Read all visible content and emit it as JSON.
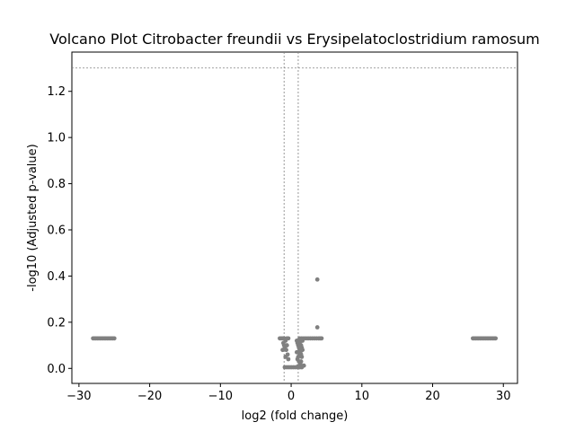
{
  "chart_data": {
    "type": "scatter",
    "title": "Volcano Plot Citrobacter freundii vs Erysipelatoclostridium ramosum",
    "xlabel": "log2 (fold change)",
    "ylabel": "-log10 (Adjusted p-value)",
    "xlim": [
      -31,
      32
    ],
    "ylim": [
      -0.065,
      1.37
    ],
    "xticks": [
      -30,
      -20,
      -10,
      0,
      10,
      20,
      30
    ],
    "xtick_labels": [
      "−30",
      "−20",
      "−10",
      "0",
      "10",
      "20",
      "30"
    ],
    "yticks": [
      0.0,
      0.2,
      0.4,
      0.6,
      0.8,
      1.0,
      1.2
    ],
    "ytick_labels": [
      "0.0",
      "0.2",
      "0.4",
      "0.6",
      "0.8",
      "1.0",
      "1.2"
    ],
    "threshold_lines": {
      "vertical": [
        -1,
        1
      ],
      "horizontal": [
        1.301
      ]
    },
    "point_color": "#808080",
    "threshold_line_color": "#808080",
    "grid": false,
    "series": [
      {
        "points": [
          [
            -28.0,
            0.13
          ],
          [
            -27.8,
            0.13
          ],
          [
            -27.6,
            0.13
          ],
          [
            -27.4,
            0.13
          ],
          [
            -27.2,
            0.13
          ],
          [
            -27.0,
            0.13
          ],
          [
            -26.8,
            0.13
          ],
          [
            -26.6,
            0.13
          ],
          [
            -26.4,
            0.13
          ],
          [
            -26.2,
            0.13
          ],
          [
            -26.0,
            0.13
          ],
          [
            -25.8,
            0.13
          ],
          [
            -25.6,
            0.13
          ],
          [
            -25.4,
            0.13
          ],
          [
            -25.2,
            0.13
          ],
          [
            -25.0,
            0.13
          ],
          [
            25.7,
            0.13
          ],
          [
            25.9,
            0.13
          ],
          [
            26.1,
            0.13
          ],
          [
            26.3,
            0.13
          ],
          [
            26.5,
            0.13
          ],
          [
            26.7,
            0.13
          ],
          [
            26.9,
            0.13
          ],
          [
            27.1,
            0.13
          ],
          [
            27.3,
            0.13
          ],
          [
            27.5,
            0.13
          ],
          [
            27.7,
            0.13
          ],
          [
            27.9,
            0.13
          ],
          [
            28.1,
            0.13
          ],
          [
            28.3,
            0.13
          ],
          [
            28.5,
            0.13
          ],
          [
            28.7,
            0.13
          ],
          [
            28.9,
            0.13
          ],
          [
            -1.6,
            0.13
          ],
          [
            -1.4,
            0.13
          ],
          [
            -1.2,
            0.13
          ],
          [
            -1.0,
            0.13
          ],
          [
            -0.8,
            0.12
          ],
          [
            -0.6,
            0.13
          ],
          [
            -0.4,
            0.13
          ],
          [
            1.2,
            0.13
          ],
          [
            1.5,
            0.13
          ],
          [
            1.8,
            0.13
          ],
          [
            2.1,
            0.13
          ],
          [
            2.4,
            0.13
          ],
          [
            2.7,
            0.13
          ],
          [
            3.0,
            0.13
          ],
          [
            3.3,
            0.13
          ],
          [
            3.6,
            0.13
          ],
          [
            3.9,
            0.13
          ],
          [
            4.1,
            0.13
          ],
          [
            4.3,
            0.13
          ],
          [
            -1.1,
            0.11
          ],
          [
            -1.0,
            0.1
          ],
          [
            -0.9,
            0.09
          ],
          [
            -0.7,
            0.08
          ],
          [
            -0.5,
            0.06
          ],
          [
            -0.4,
            0.04
          ],
          [
            -0.6,
            0.1
          ],
          [
            -1.2,
            0.08
          ],
          [
            -0.8,
            0.05
          ],
          [
            0.8,
            0.12
          ],
          [
            0.9,
            0.11
          ],
          [
            1.0,
            0.1
          ],
          [
            1.1,
            0.09
          ],
          [
            1.2,
            0.08
          ],
          [
            1.3,
            0.07
          ],
          [
            1.4,
            0.06
          ],
          [
            1.5,
            0.05
          ],
          [
            0.9,
            0.04
          ],
          [
            1.1,
            0.03
          ],
          [
            1.3,
            0.02
          ],
          [
            1.0,
            0.01
          ],
          [
            1.2,
            0.11
          ],
          [
            1.4,
            0.1
          ],
          [
            1.5,
            0.09
          ],
          [
            1.6,
            0.08
          ],
          [
            1.2,
            0.06
          ],
          [
            1.6,
            0.12
          ],
          [
            0.8,
            0.07
          ],
          [
            1.3,
            0.12
          ],
          [
            1.0,
            0.05
          ],
          [
            1.4,
            0.03
          ],
          [
            -0.9,
            0.005
          ],
          [
            -0.6,
            0.005
          ],
          [
            -0.3,
            0.005
          ],
          [
            0.0,
            0.005
          ],
          [
            0.3,
            0.005
          ],
          [
            0.6,
            0.005
          ],
          [
            0.9,
            0.005
          ],
          [
            1.2,
            0.005
          ],
          [
            1.5,
            0.005
          ],
          [
            1.8,
            0.012
          ],
          [
            3.7,
            0.385
          ],
          [
            3.7,
            0.178
          ]
        ]
      }
    ]
  }
}
